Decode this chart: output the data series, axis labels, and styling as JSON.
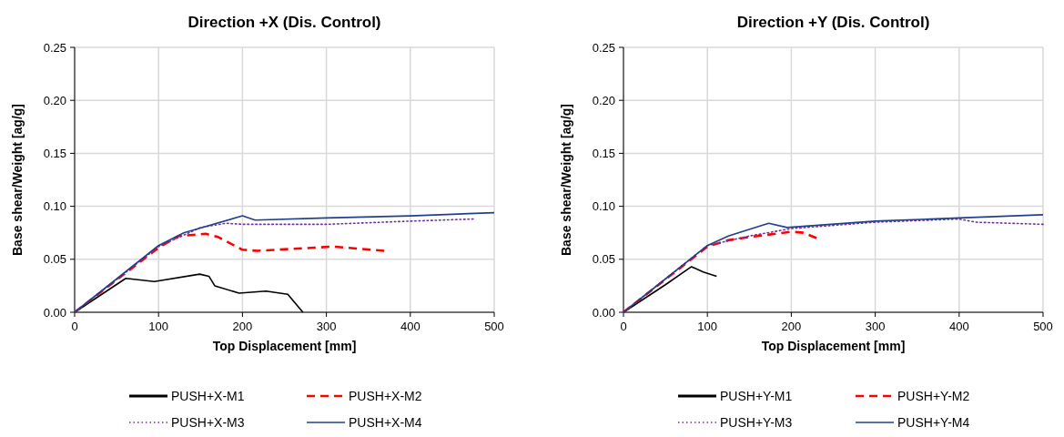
{
  "chart_data": [
    {
      "type": "line",
      "title": "Direction +X (Dis. Control)",
      "xlabel": "Top Displacement [mm]",
      "ylabel": "Base shear/Weight [ag/g]",
      "xlim": [
        0,
        500
      ],
      "xticks": [
        0,
        100,
        200,
        300,
        400,
        500
      ],
      "ylim": [
        0,
        0.25
      ],
      "yticks": [
        {
          "value": 0,
          "label": "0.00"
        },
        {
          "value": 0.05,
          "label": "0.05"
        },
        {
          "value": 0.1,
          "label": "0.10"
        },
        {
          "value": 0.15,
          "label": "0.15"
        },
        {
          "value": 0.2,
          "label": "0.20"
        },
        {
          "value": 0.25,
          "label": "0.25"
        }
      ],
      "grid": true,
      "legend": "bottom",
      "series": [
        {
          "name": "PUSH+X-M1",
          "color": "#000000",
          "line_style": "solid",
          "x": [
            0,
            61,
            95,
            149,
            160,
            167,
            196,
            228,
            254,
            272
          ],
          "values": [
            0,
            0.032,
            0.029,
            0.036,
            0.034,
            0.025,
            0.018,
            0.02,
            0.017,
            0
          ]
        },
        {
          "name": "PUSH+X-M2",
          "color": "#ff0000",
          "line_style": "dashed",
          "x": [
            0,
            100,
            124,
            156,
            171,
            200,
            218,
            286,
            308,
            369
          ],
          "values": [
            0,
            0.061,
            0.072,
            0.074,
            0.071,
            0.059,
            0.058,
            0.061,
            0.062,
            0.058
          ]
        },
        {
          "name": "PUSH+X-M3",
          "color": "#7030a0",
          "line_style": "dotted",
          "x": [
            0,
            100,
            150,
            180,
            200,
            300,
            400,
            475
          ],
          "values": [
            0,
            0.062,
            0.08,
            0.084,
            0.083,
            0.083,
            0.086,
            0.088
          ]
        },
        {
          "name": "PUSH+X-M4",
          "color": "#203f8c",
          "line_style": "solid",
          "x": [
            0,
            100,
            130,
            200,
            215,
            300,
            400,
            500
          ],
          "values": [
            0,
            0.063,
            0.075,
            0.091,
            0.087,
            0.089,
            0.091,
            0.094
          ]
        }
      ]
    },
    {
      "type": "line",
      "title": "Direction +Y (Dis. Control)",
      "xlabel": "Top Displacement [mm]",
      "ylabel": "Base shear/Weight [ag/g]",
      "xlim": [
        0,
        500
      ],
      "xticks": [
        0,
        100,
        200,
        300,
        400,
        500
      ],
      "ylim": [
        0,
        0.25
      ],
      "yticks": [
        {
          "value": 0,
          "label": "0.00"
        },
        {
          "value": 0.05,
          "label": "0.05"
        },
        {
          "value": 0.1,
          "label": "0.10"
        },
        {
          "value": 0.15,
          "label": "0.15"
        },
        {
          "value": 0.2,
          "label": "0.20"
        },
        {
          "value": 0.25,
          "label": "0.25"
        }
      ],
      "grid": true,
      "legend": "bottom",
      "series": [
        {
          "name": "PUSH+Y-M1",
          "color": "#000000",
          "line_style": "solid",
          "x": [
            0,
            50,
            81,
            95,
            111
          ],
          "values": [
            0,
            0.026,
            0.043,
            0.038,
            0.034
          ]
        },
        {
          "name": "PUSH+Y-M2",
          "color": "#ff0000",
          "line_style": "dashed",
          "x": [
            0,
            100,
            125,
            150,
            200,
            215,
            230
          ],
          "values": [
            0,
            0.062,
            0.068,
            0.071,
            0.076,
            0.075,
            0.07
          ]
        },
        {
          "name": "PUSH+Y-M3",
          "color": "#7030a0",
          "line_style": "dotted",
          "x": [
            0,
            100,
            150,
            200,
            300,
            400,
            420,
            500
          ],
          "values": [
            0,
            0.063,
            0.072,
            0.079,
            0.085,
            0.088,
            0.085,
            0.083
          ]
        },
        {
          "name": "PUSH+Y-M4",
          "color": "#203f8c",
          "line_style": "solid",
          "x": [
            0,
            100,
            125,
            173,
            195,
            300,
            400,
            500
          ],
          "values": [
            0,
            0.063,
            0.072,
            0.084,
            0.08,
            0.086,
            0.089,
            0.092
          ]
        }
      ]
    }
  ]
}
